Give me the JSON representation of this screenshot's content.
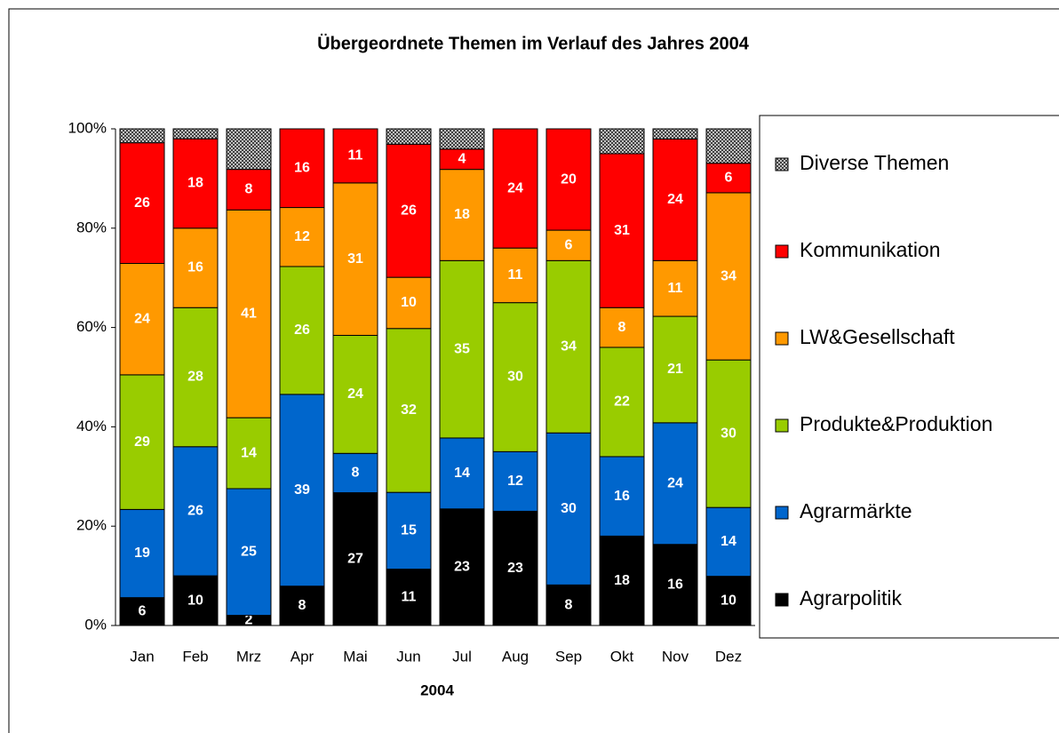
{
  "chart_data": {
    "type": "stacked_percent_bar",
    "title": "Übergeordnete Themen im Verlauf des Jahres 2004",
    "x_label": "2004",
    "categories": [
      "Jan",
      "Feb",
      "Mrz",
      "Apr",
      "Mai",
      "Jun",
      "Jul",
      "Aug",
      "Sep",
      "Okt",
      "Nov",
      "Dez"
    ],
    "series": [
      {
        "name": "Agrarpolitik",
        "color": "#000000",
        "values": [
          6,
          10,
          2,
          8,
          27,
          11,
          23,
          23,
          8,
          18,
          16,
          10
        ]
      },
      {
        "name": "Agrarmärkte",
        "color": "#0066cc",
        "values": [
          19,
          26,
          25,
          39,
          8,
          15,
          14,
          12,
          30,
          16,
          24,
          14
        ]
      },
      {
        "name": "Produkte&Produktion",
        "color": "#99cc00",
        "values": [
          29,
          28,
          14,
          26,
          24,
          32,
          35,
          30,
          34,
          22,
          21,
          30
        ]
      },
      {
        "name": "LW&Gesellschaft",
        "color": "#ff9900",
        "values": [
          24,
          16,
          41,
          12,
          31,
          10,
          18,
          11,
          6,
          8,
          11,
          34
        ]
      },
      {
        "name": "Kommunikation",
        "color": "#ff0000",
        "values": [
          26,
          18,
          8,
          16,
          11,
          26,
          4,
          24,
          20,
          31,
          24,
          6
        ]
      },
      {
        "name": "Diverse Themen",
        "color": "#808080",
        "hatch": "checker",
        "data_labels": false,
        "values": [
          3,
          2,
          8,
          0,
          0,
          3,
          4,
          0,
          0,
          5,
          2,
          7
        ]
      }
    ],
    "ylim": [
      0,
      100
    ],
    "yticks": [
      {
        "value": 0,
        "label": "0%"
      },
      {
        "value": 20,
        "label": "20%"
      },
      {
        "value": 40,
        "label": "40%"
      },
      {
        "value": 60,
        "label": "60%"
      },
      {
        "value": 80,
        "label": "80%"
      },
      {
        "value": 100,
        "label": "100%"
      }
    ],
    "legend": "right"
  }
}
